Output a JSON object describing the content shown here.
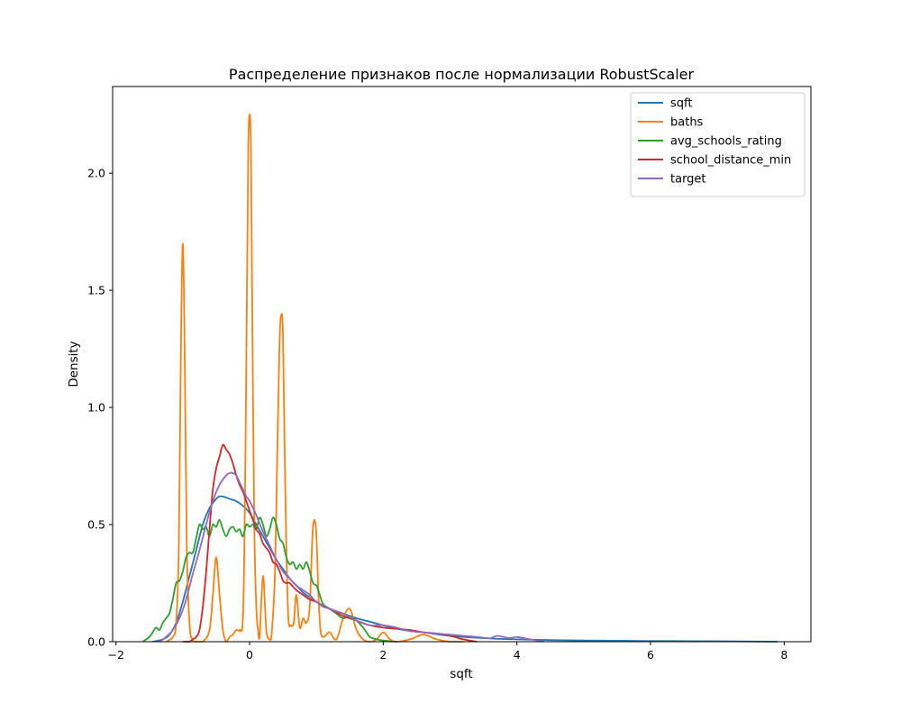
{
  "chart_data": {
    "type": "line",
    "title": "Распределение признаков после нормализации RobustScaler",
    "xlabel": "sqft",
    "ylabel": "Density",
    "xlim": [
      -2.05,
      8.4
    ],
    "ylim": [
      0,
      2.37
    ],
    "x_ticks": [
      -2,
      0,
      2,
      4,
      6,
      8
    ],
    "x_tick_labels": [
      "−2",
      "0",
      "2",
      "4",
      "6",
      "8"
    ],
    "y_ticks": [
      0.0,
      0.5,
      1.0,
      1.5,
      2.0
    ],
    "y_tick_labels": [
      "0.0",
      "0.5",
      "1.0",
      "1.5",
      "2.0"
    ],
    "grid": false,
    "legend_position": "top-right",
    "series": [
      {
        "name": "sqft",
        "color": "#1f77b4",
        "x": [
          -1.45,
          -1.3,
          -1.2,
          -1.1,
          -1.0,
          -0.9,
          -0.8,
          -0.7,
          -0.6,
          -0.5,
          -0.45,
          -0.4,
          -0.3,
          -0.2,
          -0.1,
          0.0,
          0.1,
          0.2,
          0.3,
          0.4,
          0.5,
          0.6,
          0.7,
          0.8,
          0.9,
          1.0,
          1.2,
          1.4,
          1.6,
          1.8,
          2.0,
          2.3,
          2.6,
          3.0,
          3.5,
          4.0,
          4.5,
          5.0,
          6.0,
          7.0,
          7.9
        ],
        "y": [
          0.0,
          0.01,
          0.03,
          0.08,
          0.17,
          0.28,
          0.39,
          0.5,
          0.57,
          0.61,
          0.62,
          0.62,
          0.61,
          0.6,
          0.58,
          0.55,
          0.5,
          0.45,
          0.4,
          0.35,
          0.31,
          0.27,
          0.24,
          0.21,
          0.19,
          0.17,
          0.14,
          0.12,
          0.1,
          0.085,
          0.07,
          0.05,
          0.04,
          0.025,
          0.015,
          0.01,
          0.007,
          0.005,
          0.003,
          0.002,
          0.0
        ]
      },
      {
        "name": "baths",
        "color": "#ff7f0e",
        "x": [
          -1.25,
          -1.15,
          -1.1,
          -1.06,
          -1.03,
          -1.0,
          -0.97,
          -0.94,
          -0.9,
          -0.86,
          -0.8,
          -0.7,
          -0.6,
          -0.55,
          -0.5,
          -0.45,
          -0.4,
          -0.35,
          -0.3,
          -0.25,
          -0.2,
          -0.15,
          -0.1,
          -0.07,
          -0.04,
          -0.02,
          0.0,
          0.02,
          0.04,
          0.07,
          0.1,
          0.13,
          0.15,
          0.2,
          0.25,
          0.3,
          0.33,
          0.38,
          0.42,
          0.45,
          0.48,
          0.5,
          0.52,
          0.55,
          0.58,
          0.62,
          0.66,
          0.7,
          0.75,
          0.8,
          0.85,
          0.9,
          0.94,
          0.97,
          1.0,
          1.03,
          1.06,
          1.1,
          1.15,
          1.2,
          1.3,
          1.4,
          1.5,
          1.6,
          1.7,
          1.8,
          1.9,
          2.0,
          2.1,
          2.2,
          2.4,
          2.6,
          2.8,
          3.0,
          3.2
        ],
        "y": [
          0.0,
          0.02,
          0.08,
          0.4,
          1.2,
          1.7,
          1.2,
          0.4,
          0.08,
          0.01,
          0.0,
          0.0,
          0.05,
          0.2,
          0.36,
          0.2,
          0.05,
          0.0,
          0.02,
          0.03,
          0.05,
          0.05,
          0.1,
          0.6,
          1.5,
          2.1,
          2.25,
          2.1,
          1.4,
          0.5,
          0.15,
          0.04,
          0.02,
          0.28,
          0.05,
          0.01,
          0.03,
          0.3,
          0.9,
          1.3,
          1.4,
          1.3,
          0.9,
          0.4,
          0.1,
          0.07,
          0.08,
          0.2,
          0.06,
          0.1,
          0.08,
          0.15,
          0.45,
          0.52,
          0.45,
          0.2,
          0.05,
          0.02,
          0.03,
          0.04,
          0.01,
          0.1,
          0.14,
          0.05,
          0.01,
          0.0,
          0.01,
          0.04,
          0.01,
          0.0,
          0.01,
          0.03,
          0.01,
          0.0,
          0.0
        ]
      },
      {
        "name": "avg_schools_rating",
        "color": "#2ca02c",
        "x": [
          -1.6,
          -1.5,
          -1.45,
          -1.4,
          -1.35,
          -1.3,
          -1.25,
          -1.2,
          -1.15,
          -1.1,
          -1.05,
          -1.0,
          -0.95,
          -0.9,
          -0.85,
          -0.8,
          -0.75,
          -0.7,
          -0.65,
          -0.6,
          -0.55,
          -0.5,
          -0.45,
          -0.4,
          -0.35,
          -0.3,
          -0.25,
          -0.2,
          -0.15,
          -0.1,
          -0.05,
          0.0,
          0.05,
          0.1,
          0.15,
          0.2,
          0.25,
          0.3,
          0.35,
          0.4,
          0.45,
          0.5,
          0.55,
          0.6,
          0.65,
          0.7,
          0.75,
          0.8,
          0.85,
          0.9,
          0.95,
          1.0,
          1.05,
          1.1,
          1.2,
          1.3,
          1.4,
          1.5,
          1.6,
          1.7,
          1.75,
          1.8,
          1.9,
          2.0,
          2.1,
          2.2
        ],
        "y": [
          0.0,
          0.02,
          0.04,
          0.06,
          0.05,
          0.08,
          0.1,
          0.12,
          0.18,
          0.25,
          0.26,
          0.3,
          0.36,
          0.38,
          0.38,
          0.44,
          0.5,
          0.48,
          0.49,
          0.45,
          0.5,
          0.49,
          0.52,
          0.48,
          0.45,
          0.48,
          0.49,
          0.47,
          0.48,
          0.45,
          0.5,
          0.49,
          0.5,
          0.48,
          0.53,
          0.5,
          0.45,
          0.48,
          0.53,
          0.5,
          0.44,
          0.42,
          0.36,
          0.33,
          0.34,
          0.31,
          0.33,
          0.31,
          0.34,
          0.3,
          0.25,
          0.24,
          0.2,
          0.16,
          0.14,
          0.12,
          0.1,
          0.11,
          0.09,
          0.06,
          0.04,
          0.02,
          0.01,
          0.005,
          0.002,
          0.0
        ]
      },
      {
        "name": "school_distance_min",
        "color": "#d62728",
        "x": [
          -1.0,
          -0.95,
          -0.9,
          -0.85,
          -0.8,
          -0.75,
          -0.7,
          -0.65,
          -0.6,
          -0.55,
          -0.5,
          -0.45,
          -0.4,
          -0.35,
          -0.3,
          -0.25,
          -0.2,
          -0.15,
          -0.1,
          -0.05,
          0.0,
          0.05,
          0.1,
          0.15,
          0.2,
          0.25,
          0.3,
          0.35,
          0.4,
          0.45,
          0.5,
          0.55,
          0.6,
          0.7,
          0.8,
          0.9,
          1.0,
          1.1,
          1.2,
          1.4,
          1.6,
          1.8,
          2.0,
          2.2,
          2.4,
          2.6,
          2.8,
          3.0,
          3.2,
          3.4
        ],
        "y": [
          0.0,
          0.0,
          0.0,
          0.01,
          0.02,
          0.05,
          0.15,
          0.3,
          0.48,
          0.65,
          0.74,
          0.79,
          0.84,
          0.82,
          0.8,
          0.76,
          0.71,
          0.67,
          0.64,
          0.6,
          0.56,
          0.52,
          0.48,
          0.46,
          0.42,
          0.4,
          0.38,
          0.34,
          0.33,
          0.3,
          0.26,
          0.25,
          0.25,
          0.22,
          0.2,
          0.18,
          0.17,
          0.15,
          0.14,
          0.11,
          0.09,
          0.07,
          0.06,
          0.055,
          0.05,
          0.04,
          0.035,
          0.025,
          0.01,
          0.0
        ]
      },
      {
        "name": "target",
        "color": "#9467bd",
        "x": [
          -1.35,
          -1.25,
          -1.15,
          -1.05,
          -0.95,
          -0.85,
          -0.75,
          -0.65,
          -0.55,
          -0.45,
          -0.35,
          -0.3,
          -0.25,
          -0.2,
          -0.15,
          -0.1,
          -0.05,
          0.0,
          0.1,
          0.2,
          0.3,
          0.4,
          0.5,
          0.6,
          0.7,
          0.8,
          0.9,
          1.0,
          1.2,
          1.4,
          1.6,
          1.8,
          2.0,
          2.2,
          2.4,
          2.6,
          2.8,
          3.0,
          3.2,
          3.4,
          3.6,
          3.7,
          3.8,
          3.9,
          4.0,
          4.2,
          4.4
        ],
        "y": [
          0.0,
          0.02,
          0.05,
          0.1,
          0.18,
          0.29,
          0.39,
          0.5,
          0.6,
          0.67,
          0.71,
          0.72,
          0.72,
          0.71,
          0.68,
          0.65,
          0.62,
          0.6,
          0.54,
          0.47,
          0.41,
          0.35,
          0.3,
          0.27,
          0.24,
          0.22,
          0.2,
          0.17,
          0.14,
          0.12,
          0.09,
          0.07,
          0.07,
          0.06,
          0.045,
          0.04,
          0.035,
          0.03,
          0.025,
          0.02,
          0.015,
          0.025,
          0.02,
          0.015,
          0.02,
          0.01,
          0.0
        ]
      }
    ]
  }
}
